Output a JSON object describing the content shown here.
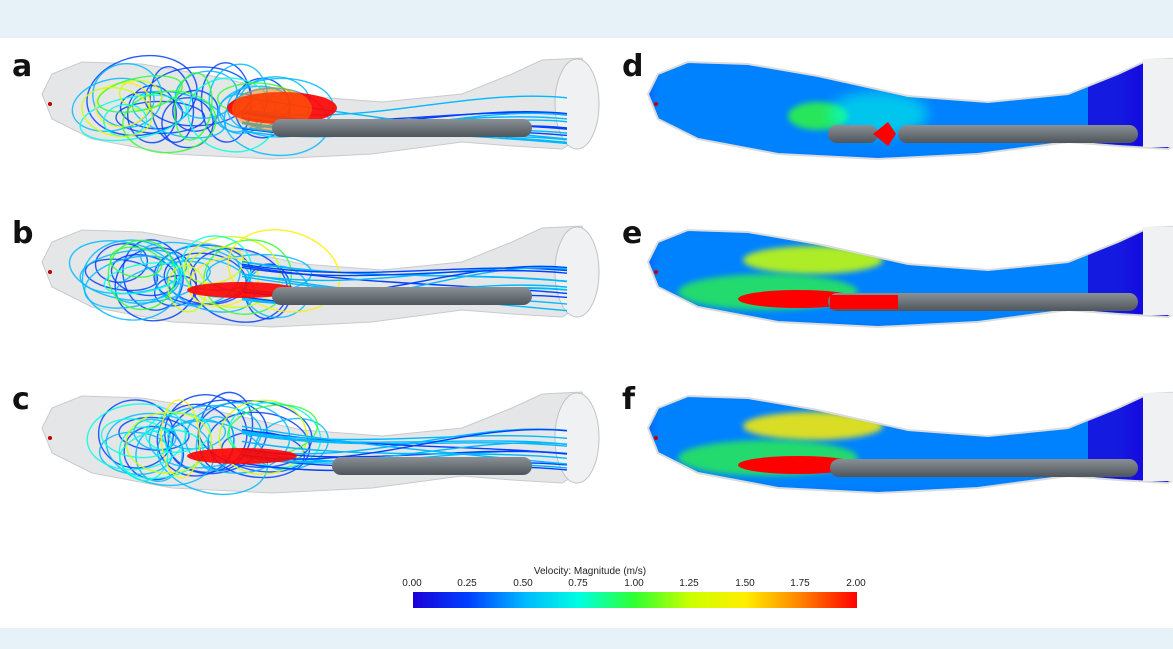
{
  "panels": [
    {
      "label": "a",
      "view": "streamlines"
    },
    {
      "label": "b",
      "view": "streamlines"
    },
    {
      "label": "c",
      "view": "streamlines"
    },
    {
      "label": "d",
      "view": "velocity-contour"
    },
    {
      "label": "e",
      "view": "velocity-contour"
    },
    {
      "label": "f",
      "view": "velocity-contour"
    }
  ],
  "colorbar": {
    "title": "Velocity: Magnitude (m/s)",
    "ticks": [
      "0.00",
      "0.25",
      "0.50",
      "0.75",
      "1.00",
      "1.25",
      "1.50",
      "1.75",
      "2.00"
    ],
    "min": 0,
    "max": 2,
    "colors": [
      "#1a00d8",
      "#0040ff",
      "#00b8ff",
      "#00ffe0",
      "#30ff30",
      "#ccff00",
      "#ffee00",
      "#ff8000",
      "#ff0000"
    ]
  },
  "colors": {
    "background_band": "#e6f2f7",
    "catheter": "#6f767c",
    "vessel_wall": "#e4e6e8"
  }
}
